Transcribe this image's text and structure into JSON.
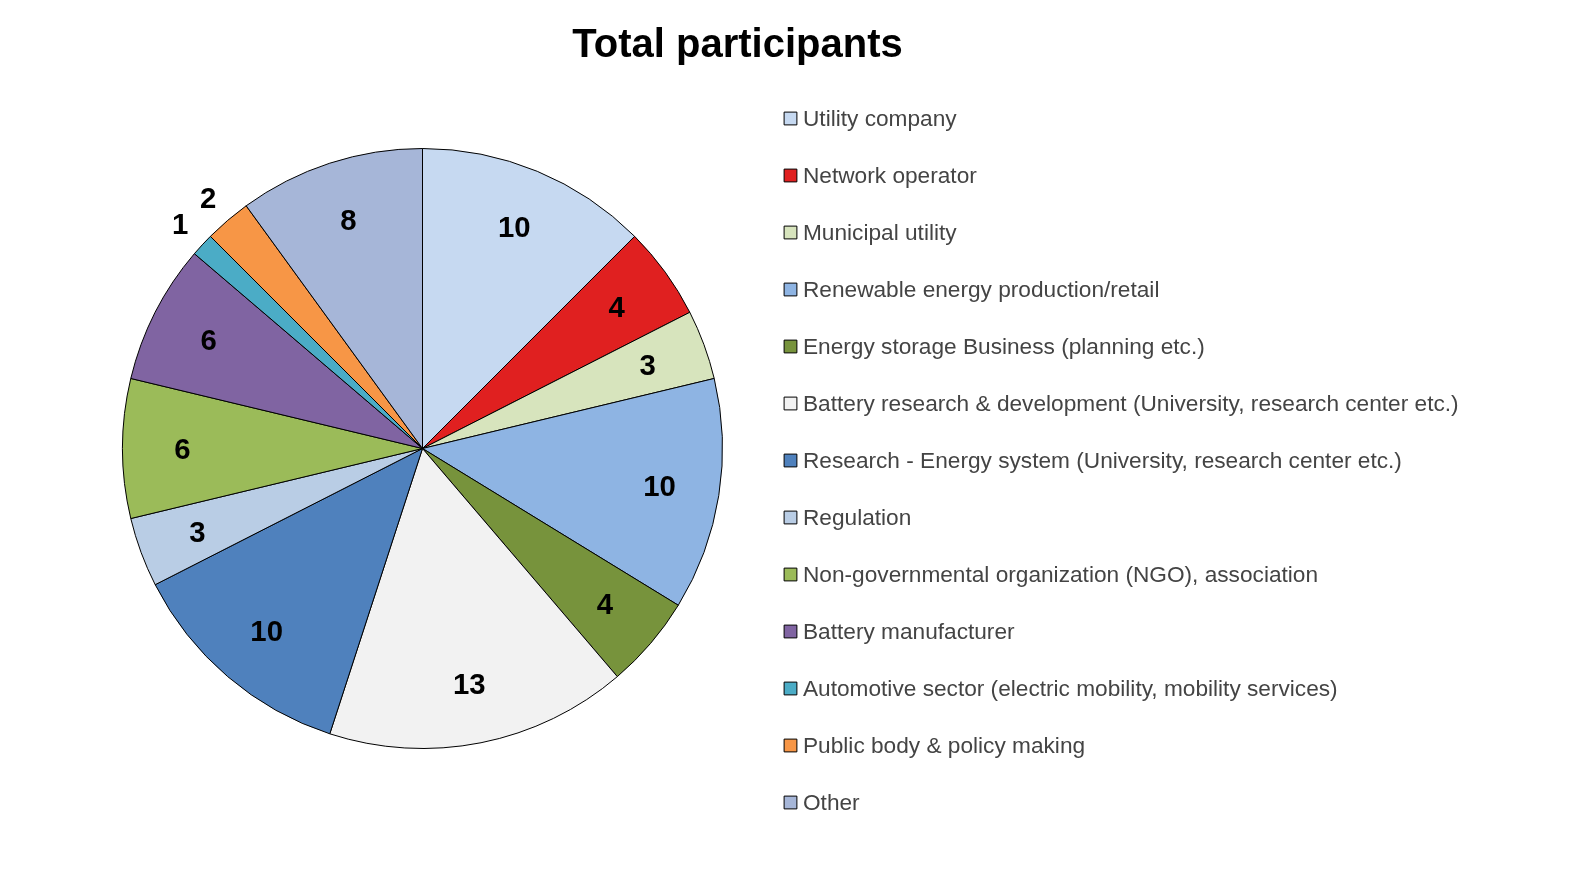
{
  "chart_data": {
    "type": "pie",
    "title": "Total participants",
    "categories": [
      "Utility company",
      "Network operator",
      "Municipal utility",
      "Renewable energy production/retail",
      "Energy storage Business (planning etc.)",
      "Battery research & development (University, research center etc.)",
      "Research - Energy system (University, research center etc.)",
      "Regulation",
      "Non-governmental organization (NGO), association",
      "Battery manufacturer",
      "Automotive sector (electric mobility, mobility services)",
      "Public body & policy making",
      "Other"
    ],
    "values": [
      10,
      4,
      3,
      10,
      4,
      13,
      10,
      3,
      6,
      6,
      1,
      2,
      8
    ],
    "colors": [
      "#c6d9f1",
      "#e02020",
      "#d7e4bd",
      "#8eb4e3",
      "#77933c",
      "#f2f2f2",
      "#4f81bd",
      "#b9cde5",
      "#9bbb59",
      "#8064a2",
      "#4bacc6",
      "#f79646",
      "#a6b6d8"
    ],
    "data_labels": true,
    "legend": "right"
  }
}
